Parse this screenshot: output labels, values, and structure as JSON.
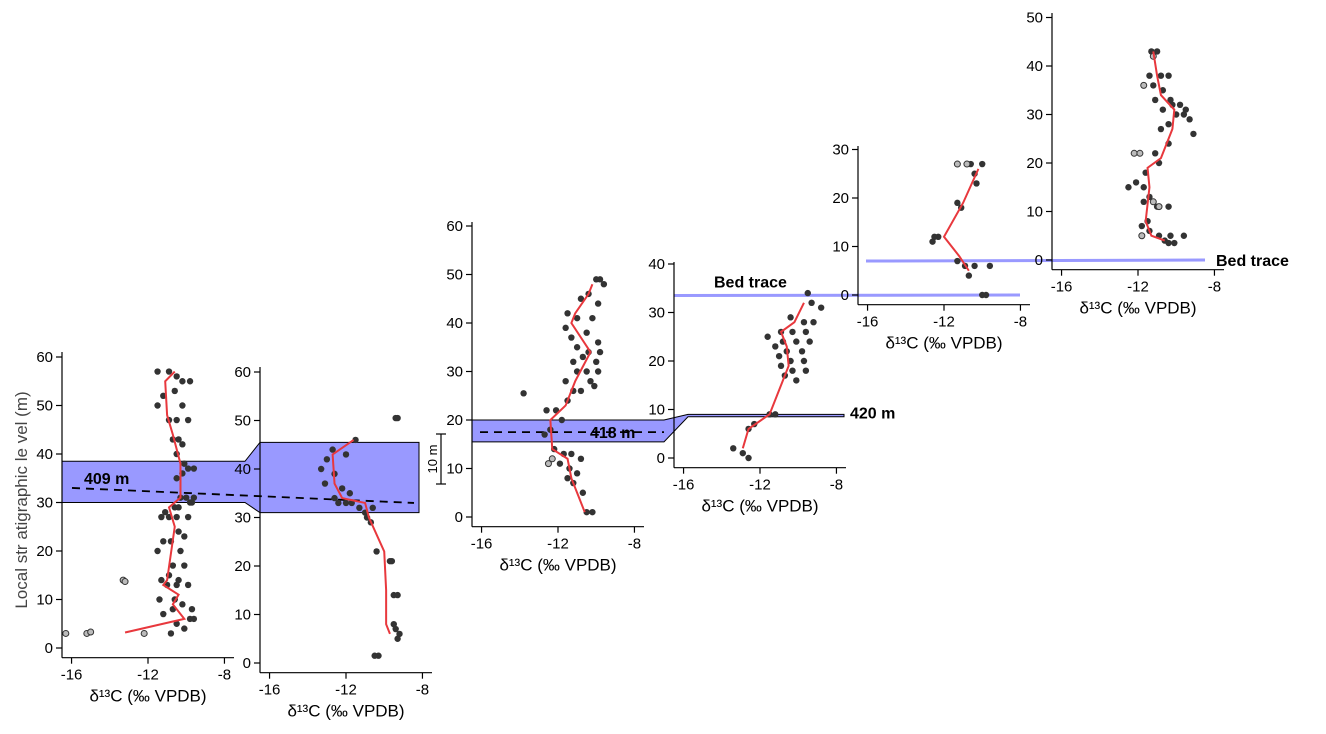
{
  "figure": {
    "ylabel": "Local str atigraphic le vel (m)",
    "scale_bar_label": "10 m",
    "colors": {
      "band_fill": "#9999ff",
      "band_stroke": "#000000",
      "trace_line": "#9999ff",
      "fit_line": "#e8383d",
      "point_fill": "#333333",
      "open_point_fill": "#bbbbbb"
    }
  },
  "chart_data": [
    {
      "type": "scatter",
      "id": "A",
      "xlabel": "δ¹³C (‰ VPDB)",
      "xlim": [
        -16.5,
        -7.5
      ],
      "xticks": [
        -16,
        -12,
        -8
      ],
      "ylim": [
        -2,
        60
      ],
      "yticks": [
        0,
        10,
        20,
        30,
        40,
        50,
        60
      ],
      "band": {
        "y0": 30,
        "y1": 38.5
      },
      "dashed_level": 33,
      "annotation": "409 m",
      "points": [
        [
          -10.9,
          57
        ],
        [
          -10.5,
          56
        ],
        [
          -10.2,
          55
        ],
        [
          -9.8,
          55
        ],
        [
          -11.5,
          57
        ],
        [
          -10.6,
          53
        ],
        [
          -11.2,
          52
        ],
        [
          -11.5,
          50
        ],
        [
          -10.2,
          50
        ],
        [
          -10.5,
          47
        ],
        [
          -10.9,
          47
        ],
        [
          -9.9,
          47
        ],
        [
          -10.7,
          43
        ],
        [
          -10.4,
          43
        ],
        [
          -10.2,
          42
        ],
        [
          -10.5,
          40
        ],
        [
          -10.1,
          38
        ],
        [
          -9.9,
          37
        ],
        [
          -9.6,
          37
        ],
        [
          -10.2,
          36
        ],
        [
          -10.5,
          35
        ],
        [
          -10.0,
          31
        ],
        [
          -10.3,
          31
        ],
        [
          -9.8,
          30
        ],
        [
          -9.7,
          30
        ],
        [
          -9.6,
          31
        ],
        [
          -10.4,
          29
        ],
        [
          -10.6,
          29
        ],
        [
          -11.1,
          28
        ],
        [
          -10.9,
          27
        ],
        [
          -10.5,
          27
        ],
        [
          -11.3,
          27
        ],
        [
          -9.9,
          27
        ],
        [
          -10.4,
          24
        ],
        [
          -10.1,
          23
        ],
        [
          -11.2,
          22
        ],
        [
          -10.8,
          22
        ],
        [
          -10.3,
          20
        ],
        [
          -11.5,
          20
        ],
        [
          -10.7,
          17
        ],
        [
          -10.1,
          17
        ],
        [
          -10.9,
          15
        ],
        [
          -10.4,
          14
        ],
        [
          -11.3,
          14
        ],
        [
          -11.0,
          13
        ],
        [
          -10.5,
          13
        ],
        [
          -9.9,
          13
        ],
        [
          -11.4,
          10
        ],
        [
          -10.6,
          10
        ],
        [
          -10.2,
          9
        ],
        [
          -9.7,
          8
        ],
        [
          -10.7,
          8
        ],
        [
          -11.2,
          7
        ],
        [
          -9.8,
          6
        ],
        [
          -9.6,
          6
        ],
        [
          -10.5,
          5
        ],
        [
          -10.1,
          4
        ],
        [
          -10.8,
          3
        ]
      ],
      "open_points": [
        [
          -16.3,
          3
        ],
        [
          -15.2,
          3
        ],
        [
          -15.0,
          3.3
        ],
        [
          -13.3,
          14
        ],
        [
          -13.2,
          13.7
        ],
        [
          -12.2,
          3
        ]
      ],
      "fit": [
        [
          -10.6,
          57
        ],
        [
          -11.1,
          55
        ],
        [
          -11.0,
          48
        ],
        [
          -10.7,
          44
        ],
        [
          -10.3,
          38
        ],
        [
          -10.3,
          31
        ],
        [
          -10.9,
          29
        ],
        [
          -10.6,
          25
        ],
        [
          -11.0,
          14
        ],
        [
          -11.2,
          13
        ],
        [
          -10.4,
          11
        ],
        [
          -10.7,
          9
        ],
        [
          -10.1,
          6
        ],
        [
          -13.2,
          3.2
        ]
      ]
    },
    {
      "type": "scatter",
      "id": "B",
      "xlabel": "δ¹³C (‰ VPDB)",
      "xlim": [
        -16.5,
        -7.5
      ],
      "xticks": [
        -16,
        -12,
        -8
      ],
      "ylim": [
        -2,
        60
      ],
      "yticks": [
        0,
        10,
        20,
        30,
        40,
        50,
        60
      ],
      "band": {
        "y0": 31,
        "y1": 45.5
      },
      "dashed_level": 33,
      "points": [
        [
          -11.5,
          46
        ],
        [
          -12.7,
          44
        ],
        [
          -12.0,
          43
        ],
        [
          -13.0,
          42
        ],
        [
          -13.3,
          40
        ],
        [
          -12.6,
          39
        ],
        [
          -13.1,
          37
        ],
        [
          -12.2,
          36
        ],
        [
          -11.8,
          35
        ],
        [
          -12.6,
          34
        ],
        [
          -12.4,
          33
        ],
        [
          -12.0,
          33
        ],
        [
          -11.7,
          33
        ],
        [
          -11.3,
          32
        ],
        [
          -10.6,
          32
        ],
        [
          -11.0,
          31
        ],
        [
          -10.9,
          30
        ],
        [
          -10.7,
          29
        ],
        [
          -10.4,
          23
        ],
        [
          -9.7,
          21
        ],
        [
          -9.6,
          21
        ],
        [
          -9.5,
          14
        ],
        [
          -9.3,
          14
        ],
        [
          -9.5,
          8
        ],
        [
          -9.4,
          7
        ],
        [
          -9.2,
          6
        ],
        [
          -9.3,
          5
        ],
        [
          -10.3,
          1.5
        ],
        [
          -10.5,
          1.5
        ],
        [
          -9.4,
          50.5
        ],
        [
          -9.3,
          50.5
        ]
      ],
      "open_points": [],
      "fit": [
        [
          -11.6,
          46
        ],
        [
          -12.7,
          43
        ],
        [
          -12.6,
          37
        ],
        [
          -12.2,
          34
        ],
        [
          -11.0,
          33
        ],
        [
          -10.8,
          30
        ],
        [
          -10.0,
          23
        ],
        [
          -9.9,
          15
        ],
        [
          -9.9,
          8
        ],
        [
          -9.7,
          6
        ]
      ]
    },
    {
      "type": "scatter",
      "id": "C",
      "xlabel": "δ¹³C (‰ VPDB)",
      "xlim": [
        -16.5,
        -7.5
      ],
      "xticks": [
        -16,
        -12,
        -8
      ],
      "ylim": [
        -2,
        60
      ],
      "yticks": [
        0,
        10,
        20,
        30,
        40,
        50,
        60
      ],
      "band": {
        "y0": 15.5,
        "y1": 20
      },
      "dashed_level": 17.5,
      "annotation": "418 m",
      "points": [
        [
          -10.0,
          49
        ],
        [
          -9.8,
          49
        ],
        [
          -9.6,
          48
        ],
        [
          -10.4,
          46
        ],
        [
          -10.8,
          45
        ],
        [
          -9.9,
          44
        ],
        [
          -11.5,
          42
        ],
        [
          -11.0,
          41
        ],
        [
          -10.2,
          41
        ],
        [
          -11.6,
          39
        ],
        [
          -10.5,
          38
        ],
        [
          -11.3,
          37
        ],
        [
          -9.9,
          36
        ],
        [
          -11.0,
          35
        ],
        [
          -10.4,
          34
        ],
        [
          -9.8,
          34
        ],
        [
          -10.7,
          33
        ],
        [
          -11.2,
          32
        ],
        [
          -10.0,
          32
        ],
        [
          -11.0,
          30
        ],
        [
          -10.5,
          30
        ],
        [
          -9.9,
          30
        ],
        [
          -11.6,
          28
        ],
        [
          -10.3,
          28
        ],
        [
          -11.2,
          26
        ],
        [
          -10.8,
          26
        ],
        [
          -10.1,
          27
        ],
        [
          -11.5,
          24
        ],
        [
          -12.1,
          22
        ],
        [
          -12.6,
          22
        ],
        [
          -11.8,
          20
        ],
        [
          -12.4,
          18
        ],
        [
          -12.7,
          17
        ],
        [
          -11.7,
          13
        ],
        [
          -11.3,
          13
        ],
        [
          -10.8,
          12
        ],
        [
          -11.9,
          11
        ],
        [
          -11.4,
          10
        ],
        [
          -11.0,
          9
        ],
        [
          -12.2,
          14
        ],
        [
          -11.5,
          8
        ],
        [
          -11.2,
          7
        ],
        [
          -10.7,
          5
        ],
        [
          -10.5,
          1
        ],
        [
          -10.2,
          1
        ],
        [
          -13.8,
          25.5
        ]
      ],
      "open_points": [
        [
          -12.5,
          11
        ],
        [
          -12.3,
          12
        ]
      ],
      "fit": [
        [
          -10.2,
          48
        ],
        [
          -10.4,
          46
        ],
        [
          -11.1,
          42
        ],
        [
          -11.3,
          40
        ],
        [
          -10.3,
          34
        ],
        [
          -10.7,
          31
        ],
        [
          -11.1,
          28
        ],
        [
          -11.6,
          23
        ],
        [
          -12.4,
          20
        ],
        [
          -12.3,
          14
        ],
        [
          -11.5,
          12
        ],
        [
          -11.3,
          8
        ],
        [
          -10.6,
          1
        ]
      ]
    },
    {
      "type": "scatter",
      "id": "D",
      "xlabel": "δ¹³C (‰ VPDB)",
      "xlim": [
        -16.5,
        -7.5
      ],
      "xticks": [
        -16,
        -12,
        -8
      ],
      "ylim": [
        -2,
        40
      ],
      "yticks": [
        0,
        10,
        20,
        30,
        40
      ],
      "band": {
        "y0": 8.5,
        "y1": 9
      },
      "trace_level": 33.5,
      "trace_label": "Bed trace",
      "annotation": "420 m",
      "points": [
        [
          -9.5,
          34
        ],
        [
          -9.3,
          32
        ],
        [
          -8.8,
          31
        ],
        [
          -10.4,
          29
        ],
        [
          -9.7,
          28
        ],
        [
          -9.2,
          28
        ],
        [
          -10.9,
          26
        ],
        [
          -10.3,
          26
        ],
        [
          -9.6,
          26
        ],
        [
          -11.6,
          25
        ],
        [
          -10.8,
          24
        ],
        [
          -10.1,
          24
        ],
        [
          -9.4,
          24
        ],
        [
          -11.2,
          23
        ],
        [
          -10.6,
          22
        ],
        [
          -9.8,
          22
        ],
        [
          -11.0,
          21
        ],
        [
          -10.4,
          20
        ],
        [
          -9.7,
          20
        ],
        [
          -10.9,
          19
        ],
        [
          -10.3,
          18
        ],
        [
          -9.6,
          18
        ],
        [
          -10.7,
          17
        ],
        [
          -10.1,
          16
        ],
        [
          -11.5,
          9
        ],
        [
          -11.2,
          9
        ],
        [
          -12.3,
          7
        ],
        [
          -12.6,
          6
        ],
        [
          -13.4,
          2
        ],
        [
          -12.9,
          1
        ],
        [
          -12.6,
          0
        ]
      ],
      "open_points": [],
      "fit": [
        [
          -9.7,
          32
        ],
        [
          -10.2,
          28
        ],
        [
          -10.9,
          26
        ],
        [
          -10.6,
          23
        ],
        [
          -10.5,
          19
        ],
        [
          -10.8,
          16
        ],
        [
          -11.5,
          9
        ],
        [
          -12.6,
          6
        ],
        [
          -12.9,
          2
        ]
      ]
    },
    {
      "type": "scatter",
      "id": "E",
      "xlabel": "δ¹³C (‰ VPDB)",
      "xlim": [
        -16.5,
        -7.5
      ],
      "xticks": [
        -16,
        -12,
        -8
      ],
      "ylim": [
        -2,
        30
      ],
      "yticks": [
        0,
        10,
        20,
        30
      ],
      "trace_level": 0,
      "points": [
        [
          -10.6,
          27
        ],
        [
          -10.0,
          27
        ],
        [
          -10.4,
          25
        ],
        [
          -10.3,
          23
        ],
        [
          -11.3,
          19
        ],
        [
          -11.1,
          18
        ],
        [
          -12.3,
          12
        ],
        [
          -12.5,
          12
        ],
        [
          -12.6,
          11
        ],
        [
          -11.3,
          7
        ],
        [
          -10.9,
          6
        ],
        [
          -10.4,
          6
        ],
        [
          -10.7,
          4
        ],
        [
          -9.6,
          6
        ],
        [
          -10.0,
          0
        ],
        [
          -9.8,
          0
        ]
      ],
      "open_points": [
        [
          -11.3,
          27
        ],
        [
          -10.8,
          27
        ]
      ],
      "fit": [
        [
          -10.2,
          26
        ],
        [
          -11.0,
          19
        ],
        [
          -12.0,
          12
        ],
        [
          -11.2,
          8
        ],
        [
          -10.7,
          5
        ]
      ]
    },
    {
      "type": "scatter",
      "id": "F",
      "xlabel": "δ¹³C (‰ VPDB)",
      "xlim": [
        -16.5,
        -7.5
      ],
      "xticks": [
        -16,
        -12,
        -8
      ],
      "ylim": [
        -2,
        50
      ],
      "yticks": [
        0,
        10,
        20,
        30,
        40,
        50
      ],
      "trace_level": 0,
      "trace_label": "Bed trace",
      "points": [
        [
          -11.3,
          43
        ],
        [
          -11.0,
          43
        ],
        [
          -10.8,
          38
        ],
        [
          -10.4,
          38
        ],
        [
          -11.4,
          38
        ],
        [
          -11.2,
          36
        ],
        [
          -10.7,
          35
        ],
        [
          -11.1,
          33
        ],
        [
          -10.3,
          33
        ],
        [
          -9.8,
          32
        ],
        [
          -10.2,
          32
        ],
        [
          -9.5,
          31
        ],
        [
          -10.7,
          31
        ],
        [
          -10.0,
          30
        ],
        [
          -9.6,
          30
        ],
        [
          -9.3,
          29
        ],
        [
          -10.4,
          28
        ],
        [
          -10.8,
          27
        ],
        [
          -9.1,
          26
        ],
        [
          -10.4,
          24
        ],
        [
          -11.1,
          22
        ],
        [
          -10.9,
          20
        ],
        [
          -11.6,
          18
        ],
        [
          -12.1,
          16
        ],
        [
          -11.7,
          15
        ],
        [
          -12.5,
          15
        ],
        [
          -11.4,
          13
        ],
        [
          -11.7,
          12
        ],
        [
          -11.0,
          11
        ],
        [
          -10.4,
          11
        ],
        [
          -11.5,
          8
        ],
        [
          -11.8,
          7
        ],
        [
          -11.4,
          6
        ],
        [
          -10.9,
          5
        ],
        [
          -10.3,
          5
        ],
        [
          -9.6,
          5
        ],
        [
          -10.6,
          4
        ],
        [
          -10.4,
          3.5
        ],
        [
          -10.1,
          3.5
        ]
      ],
      "open_points": [
        [
          -11.2,
          42
        ],
        [
          -11.7,
          36
        ],
        [
          -12.2,
          22
        ],
        [
          -11.9,
          22
        ],
        [
          -11.2,
          12
        ],
        [
          -10.9,
          11
        ],
        [
          -11.8,
          5
        ]
      ],
      "fit": [
        [
          -11.2,
          43
        ],
        [
          -11.0,
          38
        ],
        [
          -10.8,
          34
        ],
        [
          -10.1,
          31
        ],
        [
          -10.2,
          27
        ],
        [
          -10.8,
          21
        ],
        [
          -11.5,
          19
        ],
        [
          -11.4,
          15
        ],
        [
          -11.6,
          8
        ],
        [
          -11.3,
          5
        ],
        [
          -10.6,
          4
        ]
      ]
    }
  ]
}
